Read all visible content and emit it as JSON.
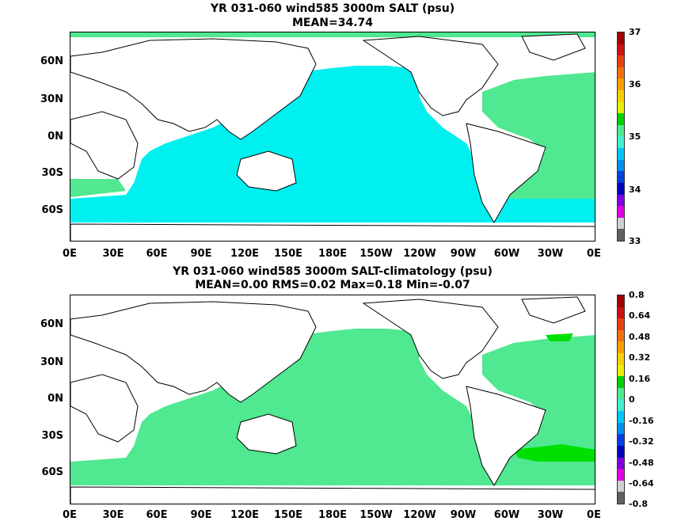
{
  "panel_top": {
    "title_line1": "YR 031-060 wind585 3000m SALT (psu)",
    "title_line2": "MEAN=34.74",
    "lat_labels": [
      "60N",
      "30N",
      "0N",
      "30S",
      "60S"
    ],
    "lon_labels": [
      "0E",
      "30E",
      "60E",
      "90E",
      "120E",
      "150E",
      "180E",
      "150W",
      "120W",
      "90W",
      "60W",
      "30W",
      "0E"
    ],
    "colorbar_labels": [
      "37",
      "36",
      "35",
      "34",
      "33"
    ],
    "colorbar_colors": [
      "#a00000",
      "#d01010",
      "#e84010",
      "#f07010",
      "#f8a000",
      "#f8d000",
      "#e8f000",
      "#00d000",
      "#50e890",
      "#40f0d0",
      "#00c8f8",
      "#0090f0",
      "#0040e0",
      "#0000c0",
      "#8000e0",
      "#e000e0",
      "#d0d0d0",
      "#606060"
    ]
  },
  "panel_bottom": {
    "title_line1": "YR 031-060 wind585 3000m SALT-climatology (psu)",
    "title_line2": "MEAN=0.00   RMS=0.02   Max=0.18   Min=-0.07",
    "lat_labels": [
      "60N",
      "30N",
      "0N",
      "30S",
      "60S"
    ],
    "lon_labels": [
      "0E",
      "30E",
      "60E",
      "90E",
      "120E",
      "150E",
      "180E",
      "150W",
      "120W",
      "90W",
      "60W",
      "30W",
      "0E"
    ],
    "colorbar_labels": [
      "0.8",
      "0.64",
      "0.48",
      "0.32",
      "0.16",
      "0",
      "-0.16",
      "-0.32",
      "-0.48",
      "-0.64",
      "-0.8"
    ],
    "colorbar_colors": [
      "#a00000",
      "#d01010",
      "#e84010",
      "#f07010",
      "#f8a000",
      "#f8d000",
      "#e8f000",
      "#00d000",
      "#50e890",
      "#40f0d0",
      "#00c8f8",
      "#0090f0",
      "#0040e0",
      "#0000c0",
      "#8000e0",
      "#e000e0",
      "#d0d0d0",
      "#606060"
    ]
  },
  "colors": {
    "cyan_field": "#00f0f0",
    "green_field": "#50e890",
    "bright_green": "#00e000",
    "land": "#ffffff"
  }
}
